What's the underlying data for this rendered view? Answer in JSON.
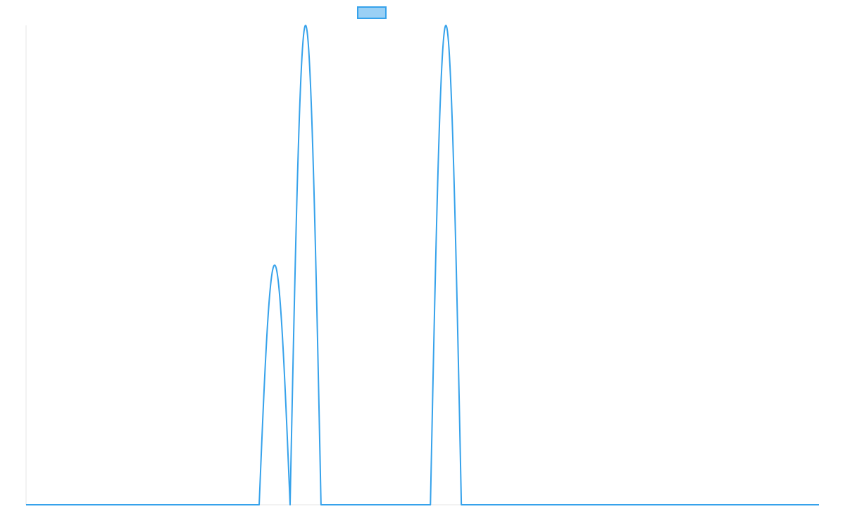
{
  "colors": {
    "series_line": "#36a2eb",
    "series_fill": "#9ad0f5",
    "axis_line": "#e6e6e6",
    "background": "#ffffff"
  },
  "chart_data": {
    "type": "line",
    "title": "",
    "xlabel": "",
    "ylabel": "",
    "grid": false,
    "legend": "top-center",
    "xlim": [
      0,
      100
    ],
    "ylim": [
      0,
      1
    ],
    "series": [
      {
        "name": "",
        "peaks": [
          {
            "x_start": 29.4,
            "x_end": 33.3,
            "x_center": 31.35,
            "y_peak": 0.5
          },
          {
            "x_start": 33.3,
            "x_end": 37.2,
            "x_center": 35.25,
            "y_peak": 1.0
          },
          {
            "x_start": 51.0,
            "x_end": 54.9,
            "x_center": 52.85,
            "y_peak": 1.0
          }
        ],
        "baseline": 0
      }
    ]
  }
}
